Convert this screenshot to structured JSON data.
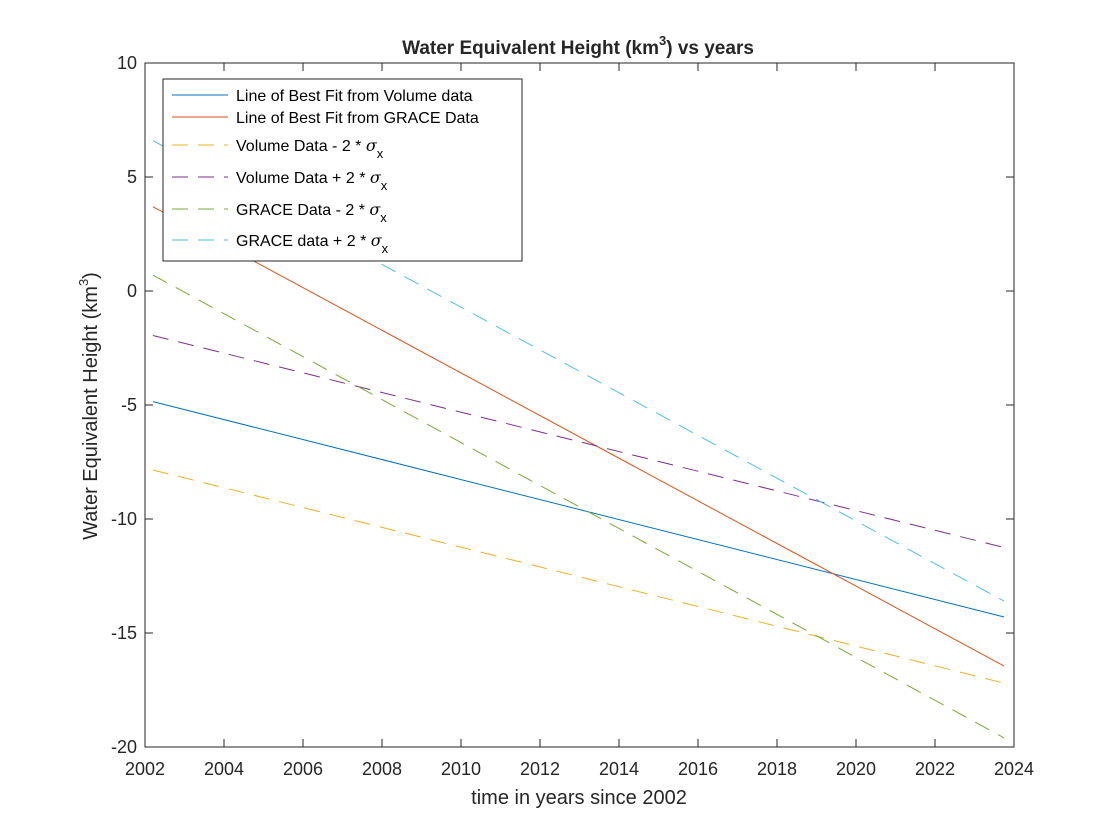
{
  "chart_data": {
    "type": "line",
    "title": "Water Equivalent Height (km³) vs years",
    "title_parts": {
      "main": "Water Equivalent Height (km",
      "superscript": "3",
      "tail": ") vs years"
    },
    "xlabel": "time in years since 2002",
    "ylabel": "Water Equivalent Height (km³)",
    "ylabel_parts": {
      "main": "Water Equivalent Height (km",
      "superscript": "3",
      "tail": ")"
    },
    "xlim": [
      2002,
      2024
    ],
    "ylim": [
      -20,
      10
    ],
    "xticks": [
      2002,
      2004,
      2006,
      2008,
      2010,
      2012,
      2014,
      2016,
      2018,
      2020,
      2022,
      2024
    ],
    "yticks": [
      -20,
      -15,
      -10,
      -5,
      0,
      5,
      10
    ],
    "grid": false,
    "legend_position": "top-left",
    "series": [
      {
        "name": "Line of Best Fit from Volume data",
        "name_parts": {
          "main": "Line of Best Fit from Volume data"
        },
        "style": "solid",
        "color": "#0072BD",
        "x": [
          2002.2,
          2023.75
        ],
        "y": [
          -4.85,
          -14.3
        ]
      },
      {
        "name": " Line of Best Fit from GRACE Data",
        "name_parts": {
          "main": " Line of Best Fit from GRACE Data"
        },
        "style": "solid",
        "color": "#D95319",
        "x": [
          2002.2,
          2023.75
        ],
        "y": [
          3.7,
          -16.45
        ]
      },
      {
        "name": "Volume Data - 2 * σx",
        "name_parts": {
          "main": "Volume Data - 2 * ",
          "sigma": "σ",
          "sub": "x"
        },
        "style": "dashed",
        "color": "#EDB120",
        "x": [
          2002.2,
          2023.75
        ],
        "y": [
          -7.85,
          -17.2
        ]
      },
      {
        "name": "Volume Data + 2 * σx",
        "name_parts": {
          "main": "Volume Data + 2 * ",
          "sigma": "σ",
          "sub": "x"
        },
        "style": "dashed",
        "color": "#7E2F8E",
        "x": [
          2002.2,
          2023.75
        ],
        "y": [
          -1.95,
          -11.25
        ]
      },
      {
        "name": "GRACE Data - 2 * σx",
        "name_parts": {
          "main": "GRACE Data - 2 * ",
          "sigma": "σ",
          "sub": "x"
        },
        "style": "dashed",
        "color": "#77AC30",
        "x": [
          2002.2,
          2023.75
        ],
        "y": [
          0.7,
          -19.6
        ]
      },
      {
        "name": "GRACE data + 2 * σx",
        "name_parts": {
          "main": "GRACE data + 2 * ",
          "sigma": "σ",
          "sub": "x"
        },
        "style": "dashed",
        "color": "#4DBEEE",
        "x": [
          2002.2,
          2023.75
        ],
        "y": [
          6.6,
          -13.6
        ]
      }
    ]
  }
}
